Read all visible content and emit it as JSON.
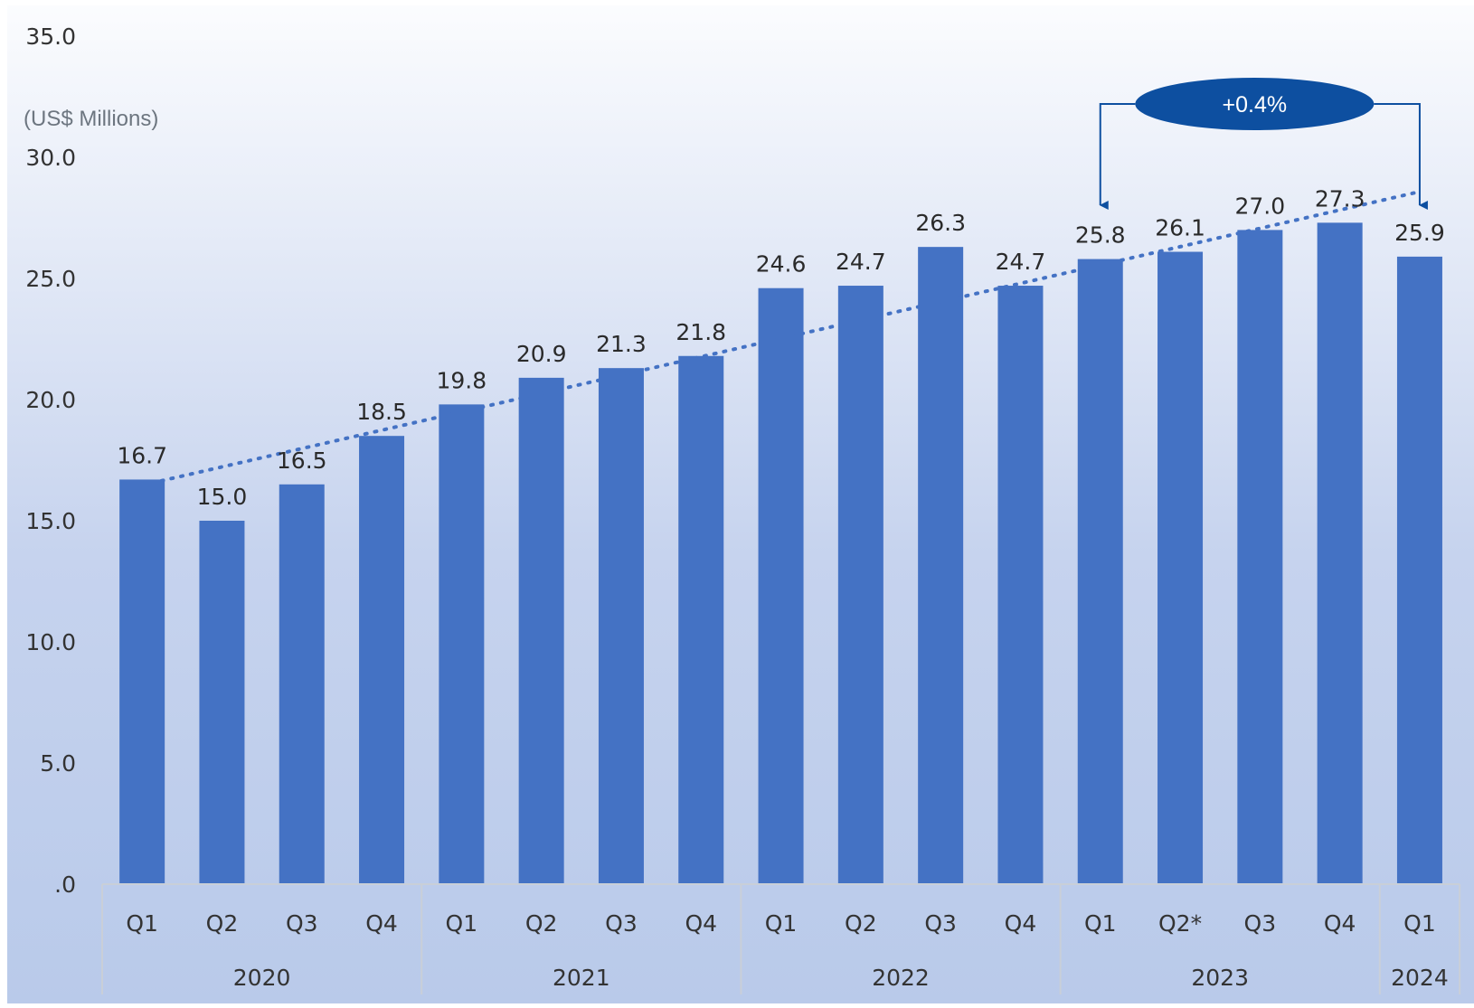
{
  "chart_data": {
    "type": "bar",
    "unit_label": "(US$ Millions)",
    "categories": [
      "Q1",
      "Q2",
      "Q3",
      "Q4",
      "Q1",
      "Q2",
      "Q3",
      "Q4",
      "Q1",
      "Q2",
      "Q3",
      "Q4",
      "Q1",
      "Q2*",
      "Q3",
      "Q4",
      "Q1"
    ],
    "groups": [
      {
        "label": "2020",
        "count": 4
      },
      {
        "label": "2021",
        "count": 4
      },
      {
        "label": "2022",
        "count": 4
      },
      {
        "label": "2023",
        "count": 4
      },
      {
        "label": "2024",
        "count": 1
      }
    ],
    "values": [
      16.7,
      15.0,
      16.5,
      18.5,
      19.8,
      20.9,
      21.3,
      21.8,
      24.6,
      24.7,
      26.3,
      24.7,
      25.8,
      26.1,
      27.0,
      27.3,
      25.9
    ],
    "value_labels": [
      "16.7",
      "15.0",
      "16.5",
      "18.5",
      "19.8",
      "20.9",
      "21.3",
      "21.8",
      "24.6",
      "24.7",
      "26.3",
      "24.7",
      "25.8",
      "26.1",
      "27.0",
      "27.3",
      "25.9"
    ],
    "ylim": [
      0,
      35
    ],
    "yticks": [
      ".0",
      "5.0",
      "10.0",
      "15.0",
      "20.0",
      "25.0",
      "30.0",
      "35.0"
    ],
    "ytick_values": [
      0,
      5,
      10,
      15,
      20,
      25,
      30,
      35
    ],
    "trendline": {
      "style": "dotted",
      "type": "linear"
    },
    "grid": false,
    "legend": "none",
    "callout": {
      "text": "+0.4%",
      "from_index": 12,
      "to_index": 16
    },
    "colors": {
      "bar": "#4472c4",
      "trend": "#4472c4",
      "callout": "#0d4fa0",
      "axis": "#c9cfd8"
    }
  }
}
